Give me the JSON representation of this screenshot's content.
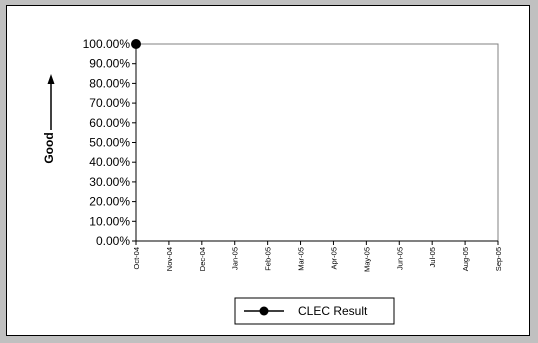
{
  "chart_data": {
    "type": "line",
    "title": "",
    "xlabel": "",
    "ylabel": "Good",
    "ylim": [
      0,
      1
    ],
    "y_ticks": [
      "0.00%",
      "10.00%",
      "20.00%",
      "30.00%",
      "40.00%",
      "50.00%",
      "60.00%",
      "70.00%",
      "80.00%",
      "90.00%",
      "100.00%"
    ],
    "categories": [
      "Oct-04",
      "Nov-04",
      "Dec-04",
      "Jan-05",
      "Feb-05",
      "Mar-05",
      "Apr-05",
      "May-05",
      "Jun-05",
      "Jul-05",
      "Aug-05",
      "Sep-05"
    ],
    "series": [
      {
        "name": "CLEC Result",
        "values": [
          1.0,
          null,
          null,
          null,
          null,
          null,
          null,
          null,
          null,
          null,
          null,
          null
        ],
        "color": "#000000",
        "marker": "circle"
      }
    ],
    "grid": false,
    "legend_position": "bottom",
    "colors": {
      "outer_background": "#c0c0c0",
      "plot_background": "#ffffff",
      "axis": "#808080"
    }
  }
}
